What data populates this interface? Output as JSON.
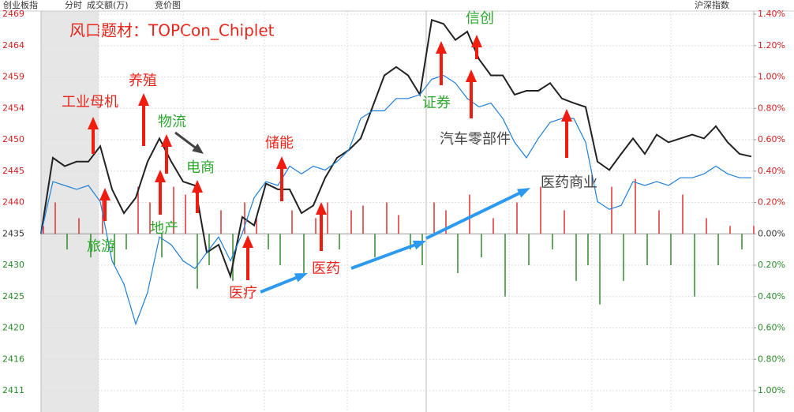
{
  "header": {
    "index_name": "创业板指",
    "mode": "分时",
    "volume_label": "成交额(万)",
    "auction": "竞价图",
    "market": "沪深指数"
  },
  "chart_data": {
    "type": "line",
    "title": "风口题材：TOPCon_Chiplet",
    "title_color": "#e8251c",
    "ylim": [
      2410.65,
      2469.09
    ],
    "yticks": [
      {
        "value": 2469.09,
        "label": "2469"
      },
      {
        "value": 2464.22,
        "label": "2464"
      },
      {
        "value": 2459.35,
        "label": "2459"
      },
      {
        "value": 2454.48,
        "label": "2454"
      },
      {
        "value": 2449.61,
        "label": "2450"
      },
      {
        "value": 2444.74,
        "label": "2445"
      },
      {
        "value": 2439.87,
        "label": "2440"
      },
      {
        "value": 2435,
        "label": "2435"
      },
      {
        "value": 2430.13,
        "label": "2430"
      },
      {
        "value": 2425.26,
        "label": "2425"
      },
      {
        "value": 2420.39,
        "label": "2420"
      },
      {
        "value": 2415.52,
        "label": "2416"
      },
      {
        "value": 2410.65,
        "label": "2411"
      }
    ],
    "y2lim": [
      -1.0,
      1.4
    ],
    "y2ticks": [
      {
        "value": 1.4,
        "label": "1.40%"
      },
      {
        "value": 1.2,
        "label": "1.20%"
      },
      {
        "value": 1.0,
        "label": "1.00%"
      },
      {
        "value": 0.8,
        "label": "0.80%"
      },
      {
        "value": 0.6,
        "label": "0.60%"
      },
      {
        "value": 0.4,
        "label": "0.40%"
      },
      {
        "value": 0.2,
        "label": "0.20%"
      },
      {
        "value": 0,
        "label": "0.00%"
      },
      {
        "value": -0.2,
        "label": "0.20%"
      },
      {
        "value": -0.4,
        "label": "0.40%"
      },
      {
        "value": -0.6,
        "label": "0.60%"
      },
      {
        "value": -0.8,
        "label": "0.80%"
      },
      {
        "value": -1.0,
        "label": "1.00%"
      }
    ],
    "grid": true,
    "series": [
      {
        "color": "#222222",
        "values": [
          2435.0,
          2446.8,
          2445.5,
          2446.2,
          2446.2,
          2448.6,
          2441.9,
          2438.2,
          2440.6,
          2446.2,
          2449.8,
          2446.2,
          2443.1,
          2442.5,
          2432.1,
          2433.3,
          2428.4,
          2437.6,
          2436.3,
          2442.8,
          2441.9,
          2441.9,
          2438.2,
          2439.4,
          2443.7,
          2446.8,
          2448.0,
          2449.8,
          2454.7,
          2459.6,
          2460.9,
          2459.6,
          2456.6,
          2468.2,
          2467.6,
          2465.1,
          2466.4,
          2462.1,
          2459.6,
          2459.6,
          2456.6,
          2457.2,
          2457.2,
          2458.4,
          2456.0,
          2455.3,
          2454.7,
          2446.2,
          2444.9,
          2447.4,
          2449.8,
          2447.4,
          2450.4,
          2449.2,
          2449.8,
          2450.4,
          2449.8,
          2451.7,
          2449.2,
          2447.4,
          2447.0
        ]
      },
      {
        "color": "#1f7fd6",
        "values": [
          2435.0,
          2443.1,
          2442.5,
          2441.9,
          2442.5,
          2440.0,
          2430.8,
          2427.2,
          2421.0,
          2425.9,
          2434.5,
          2433.3,
          2430.8,
          2429.6,
          2432.1,
          2434.5,
          2430.8,
          2435.1,
          2440.6,
          2443.1,
          2442.5,
          2445.5,
          2444.3,
          2445.5,
          2444.9,
          2446.2,
          2448.0,
          2452.9,
          2454.1,
          2454.1,
          2456.0,
          2456.0,
          2456.6,
          2459.0,
          2459.6,
          2458.4,
          2456.0,
          2454.7,
          2455.3,
          2452.9,
          2449.2,
          2446.8,
          2449.8,
          2452.3,
          2452.9,
          2452.9,
          2449.2,
          2440.0,
          2438.8,
          2439.4,
          2443.1,
          2442.5,
          2443.1,
          2442.5,
          2443.7,
          2443.7,
          2444.3,
          2445.5,
          2444.3,
          2443.7,
          2443.7
        ]
      },
      {
        "type": "bar",
        "axis": "y2",
        "up_color": "#e03030",
        "down_color": "#2e8b2e",
        "values": [
          0.05,
          0.2,
          -0.1,
          0.1,
          -0.15,
          0.25,
          -0.2,
          -0.1,
          0.3,
          0.2,
          -0.15,
          0.3,
          0.25,
          -0.35,
          -0.2,
          0.15,
          -0.3,
          0.2,
          0.1,
          -0.1,
          -0.2,
          0.15,
          -0.25,
          0.1,
          0.2,
          -0.1,
          0.15,
          0.18,
          -0.15,
          0.2,
          0.12,
          -0.1,
          -0.2,
          0.2,
          0.15,
          -0.25,
          0.25,
          -0.15,
          0.1,
          -0.4,
          0.2,
          -0.2,
          0.3,
          -0.1,
          0.15,
          -0.3,
          -0.2,
          -0.45,
          0.3,
          -0.3,
          0.35,
          -0.2,
          0.15,
          -0.2,
          0.25,
          -0.4,
          0.1,
          -0.2,
          0.05,
          -0.1,
          0.05
        ]
      }
    ],
    "annotations": [
      {
        "text": "工业母机",
        "color": "#e8251c"
      },
      {
        "text": "养殖",
        "color": "#e8251c"
      },
      {
        "text": "物流",
        "color": "#2ea82e"
      },
      {
        "text": "电商",
        "color": "#2ea82e"
      },
      {
        "text": "储能",
        "color": "#e8251c"
      },
      {
        "text": "旅游",
        "color": "#2ea82e"
      },
      {
        "text": "地产",
        "color": "#2ea82e"
      },
      {
        "text": "医疗",
        "color": "#e8251c"
      },
      {
        "text": "医药",
        "color": "#e8251c"
      },
      {
        "text": "证券",
        "color": "#2ea82e"
      },
      {
        "text": "信创",
        "color": "#2ea82e"
      },
      {
        "text": "汽车零部件",
        "color": "#444444"
      },
      {
        "text": "医药商业",
        "color": "#444444"
      }
    ]
  }
}
